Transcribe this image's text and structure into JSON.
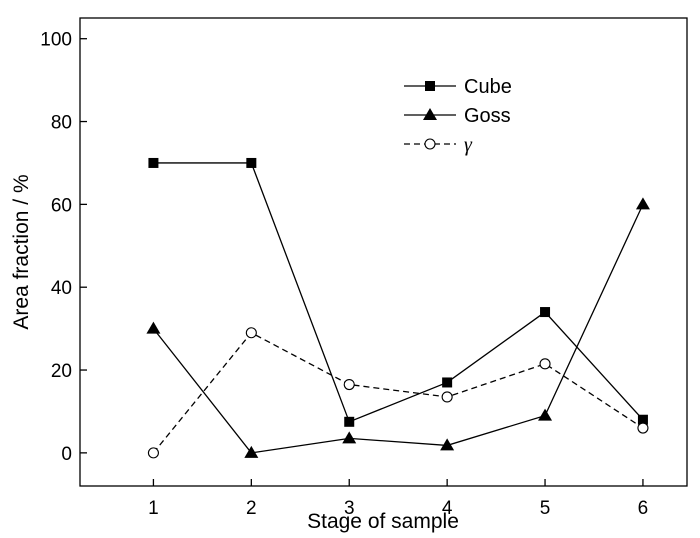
{
  "chart_data": {
    "type": "line",
    "xlabel": "Stage of sample",
    "ylabel": "Area fraction / %",
    "x": [
      1,
      2,
      3,
      4,
      5,
      6
    ],
    "xlim": [
      0.25,
      6.45
    ],
    "ylim": [
      -8,
      105
    ],
    "xticks": [
      1,
      2,
      3,
      4,
      5,
      6
    ],
    "yticks": [
      0,
      20,
      40,
      60,
      80,
      100
    ],
    "grid": false,
    "legend_position": "top-right",
    "series": [
      {
        "name": "Cube",
        "values": [
          70,
          70,
          7.5,
          17,
          34,
          8
        ],
        "marker": "square-filled",
        "line": "solid",
        "color": "#000000"
      },
      {
        "name": "Goss",
        "values": [
          30,
          0,
          3.5,
          1.8,
          9,
          60
        ],
        "marker": "triangle-filled",
        "line": "solid",
        "color": "#000000"
      },
      {
        "name": "γ",
        "values": [
          0,
          29,
          16.5,
          13.5,
          21.5,
          6
        ],
        "marker": "circle-open",
        "line": "dashed",
        "color": "#000000"
      }
    ]
  }
}
